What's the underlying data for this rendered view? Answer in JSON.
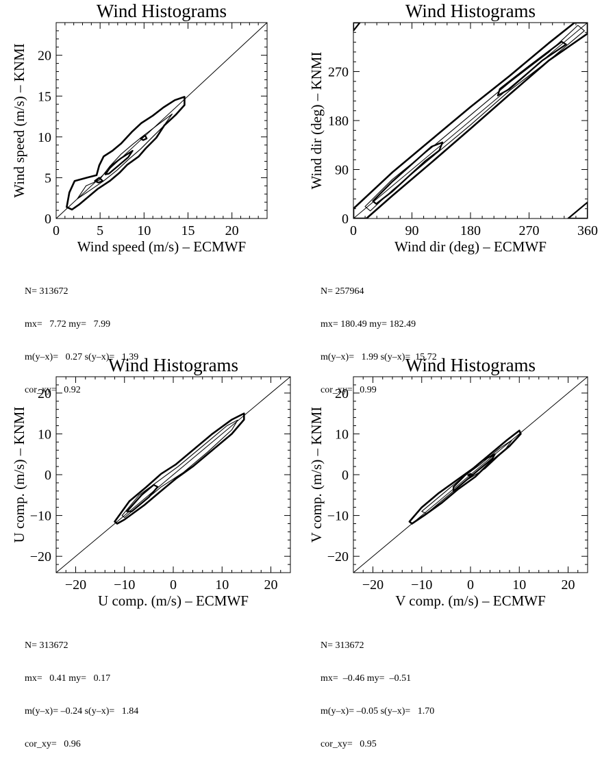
{
  "chart_data": [
    {
      "type": "heatmap",
      "subtype": "contour",
      "title": "Wind Histograms",
      "xlabel": "Wind speed (m/s)  – ECMWF",
      "ylabel": "Wind speed (m/s)  – KNMI",
      "xlim": [
        0,
        24
      ],
      "ylim": [
        0,
        24
      ],
      "xticks": [
        0,
        5,
        10,
        15,
        20
      ],
      "yticks": [
        0,
        5,
        10,
        15,
        20
      ],
      "xticklabels": [
        "0",
        "5",
        "10",
        "15",
        "20"
      ],
      "yticklabels": [
        "0",
        "5",
        "10",
        "15",
        "20"
      ],
      "diagonal": true,
      "contours": [
        {
          "level": "outer",
          "points": [
            [
              1.2,
              1.4
            ],
            [
              1.5,
              3.2
            ],
            [
              2.1,
              4.6
            ],
            [
              3.5,
              5.0
            ],
            [
              4.6,
              5.3
            ],
            [
              4.9,
              6.5
            ],
            [
              5.4,
              7.6
            ],
            [
              6.4,
              8.3
            ],
            [
              7.4,
              9.2
            ],
            [
              8.6,
              10.6
            ],
            [
              9.7,
              11.7
            ],
            [
              11.0,
              12.6
            ],
            [
              12.2,
              13.6
            ],
            [
              13.5,
              14.5
            ],
            [
              14.6,
              14.9
            ],
            [
              14.6,
              13.9
            ],
            [
              13.6,
              12.7
            ],
            [
              12.3,
              11.4
            ],
            [
              11.4,
              9.9
            ],
            [
              10.2,
              8.6
            ],
            [
              9.4,
              7.6
            ],
            [
              8.1,
              6.6
            ],
            [
              7.2,
              5.6
            ],
            [
              6.1,
              4.6
            ],
            [
              4.7,
              3.6
            ],
            [
              3.6,
              2.6
            ],
            [
              2.6,
              1.7
            ],
            [
              1.8,
              1.1
            ]
          ]
        },
        {
          "level": "mid",
          "points": [
            [
              2.4,
              2.4
            ],
            [
              3.4,
              4.0
            ],
            [
              4.9,
              4.7
            ],
            [
              6.1,
              6.4
            ],
            [
              7.4,
              7.9
            ],
            [
              8.6,
              9.0
            ],
            [
              10.0,
              10.2
            ],
            [
              11.7,
              11.6
            ],
            [
              13.2,
              12.8
            ],
            [
              12.2,
              11.3
            ],
            [
              10.8,
              9.8
            ],
            [
              9.6,
              8.5
            ],
            [
              8.2,
              7.2
            ],
            [
              6.9,
              5.9
            ],
            [
              5.4,
              4.6
            ],
            [
              3.9,
              3.5
            ]
          ]
        },
        {
          "level": "core",
          "points": [
            [
              5.6,
              5.4
            ],
            [
              6.3,
              6.5
            ],
            [
              7.4,
              7.4
            ],
            [
              8.7,
              8.3
            ],
            [
              8.2,
              7.5
            ],
            [
              7.0,
              6.4
            ],
            [
              6.0,
              5.5
            ]
          ]
        },
        {
          "level": "peak",
          "points": [
            [
              4.4,
              4.6
            ],
            [
              4.9,
              5.0
            ],
            [
              5.3,
              4.6
            ],
            [
              4.8,
              4.4
            ]
          ]
        },
        {
          "level": "peak",
          "points": [
            [
              9.6,
              9.8
            ],
            [
              10.1,
              10.2
            ],
            [
              10.3,
              9.8
            ],
            [
              9.9,
              9.6
            ]
          ]
        }
      ],
      "stats": [
        "N= 313672",
        "mx=   7.72 my=   7.99",
        "m(y–x)=   0.27 s(y–x)=   1.39",
        "cor_xy=   0.92"
      ]
    },
    {
      "type": "heatmap",
      "subtype": "contour",
      "title": "Wind Histograms",
      "xlabel": "Wind dir (deg)  – ECMWF",
      "ylabel": "Wind dir (deg)  – KNMI",
      "xlim": [
        0,
        360
      ],
      "ylim": [
        0,
        360
      ],
      "xticks": [
        0,
        90,
        180,
        270,
        360
      ],
      "yticks": [
        0,
        90,
        180,
        270
      ],
      "xticklabels": [
        "0",
        "90",
        "180",
        "270",
        "360"
      ],
      "yticklabels": [
        "0",
        "90",
        "180",
        "270"
      ],
      "diagonal": true,
      "contours": [
        {
          "level": "outer",
          "points": [
            [
              0,
              18
            ],
            [
              60,
              85
            ],
            [
              120,
              145
            ],
            [
              180,
              205
            ],
            [
              240,
              262
            ],
            [
              300,
              322
            ],
            [
              340,
              360
            ],
            [
              360,
              360
            ],
            [
              360,
              340
            ],
            [
              300,
              290
            ],
            [
              240,
              228
            ],
            [
              180,
              165
            ],
            [
              120,
              103
            ],
            [
              60,
              42
            ],
            [
              20,
              0
            ],
            [
              0,
              0
            ]
          ]
        },
        {
          "level": "mid",
          "points": [
            [
              18,
              22
            ],
            [
              60,
              72
            ],
            [
              120,
              130
            ],
            [
              180,
              190
            ],
            [
              240,
              250
            ],
            [
              300,
              305
            ],
            [
              345,
              355
            ],
            [
              355,
              345
            ],
            [
              300,
              290
            ],
            [
              240,
              235
            ],
            [
              180,
              172
            ],
            [
              120,
              112
            ],
            [
              60,
              52
            ],
            [
              26,
              14
            ]
          ]
        },
        {
          "level": "core",
          "points": [
            [
              30,
              32
            ],
            [
              60,
              68
            ],
            [
              120,
              132
            ],
            [
              137,
              140
            ],
            [
              132,
              125
            ],
            [
              110,
              105
            ],
            [
              60,
              50
            ],
            [
              35,
              27
            ]
          ]
        },
        {
          "level": "core",
          "points": [
            [
              225,
              238
            ],
            [
              270,
              280
            ],
            [
              320,
              325
            ],
            [
              327,
              320
            ],
            [
              290,
              290
            ],
            [
              240,
              238
            ],
            [
              222,
              226
            ]
          ]
        },
        {
          "level": "corner",
          "points": [
            [
              330,
              0
            ],
            [
              360,
              30
            ],
            [
              360,
              0
            ]
          ]
        },
        {
          "level": "corner",
          "points": [
            [
              0,
              345
            ],
            [
              10,
              360
            ],
            [
              0,
              360
            ]
          ]
        }
      ],
      "stats": [
        "N= 257964",
        "mx= 180.49 my= 182.49",
        "m(y–x)=   1.99 s(y–x)=  15.72",
        "cor_xy=   0.99"
      ]
    },
    {
      "type": "heatmap",
      "subtype": "contour",
      "title": "Wind Histograms",
      "xlabel": "U comp. (m/s)  – ECMWF",
      "ylabel": "U comp. (m/s)  – KNMI",
      "xlim": [
        -24,
        24
      ],
      "ylim": [
        -24,
        24
      ],
      "xticks": [
        -20,
        -10,
        0,
        10,
        20
      ],
      "yticks": [
        -20,
        -10,
        0,
        10,
        20
      ],
      "xticklabels": [
        "−20",
        "−10",
        "0",
        "10",
        "20"
      ],
      "yticklabels": [
        "−20",
        "−10",
        "0",
        "10",
        "20"
      ],
      "diagonal": true,
      "contours": [
        {
          "level": "outer",
          "points": [
            [
              -12.0,
              -11.5
            ],
            [
              -9.0,
              -6.5
            ],
            [
              -5.5,
              -3.0
            ],
            [
              -2.5,
              0.2
            ],
            [
              0.5,
              2.5
            ],
            [
              4.0,
              6.0
            ],
            [
              8.0,
              10.0
            ],
            [
              12.0,
              13.5
            ],
            [
              14.5,
              15.0
            ],
            [
              14.5,
              13.5
            ],
            [
              12.0,
              10.0
            ],
            [
              8.0,
              6.0
            ],
            [
              4.0,
              2.0
            ],
            [
              0.5,
              -1.0
            ],
            [
              -2.5,
              -4.0
            ],
            [
              -6.0,
              -7.5
            ],
            [
              -10.0,
              -11.0
            ],
            [
              -11.5,
              -12.0
            ]
          ]
        },
        {
          "level": "mid",
          "points": [
            [
              -10.5,
              -10.0
            ],
            [
              -7.0,
              -5.0
            ],
            [
              -3.0,
              -1.5
            ],
            [
              1.0,
              2.0
            ],
            [
              6.0,
              7.0
            ],
            [
              11.0,
              12.0
            ],
            [
              13.2,
              13.4
            ],
            [
              12.0,
              11.0
            ],
            [
              7.0,
              5.5
            ],
            [
              2.0,
              0.5
            ],
            [
              -2.5,
              -3.0
            ],
            [
              -7.0,
              -7.5
            ],
            [
              -10.0,
              -10.5
            ]
          ]
        },
        {
          "level": "core",
          "points": [
            [
              -9.5,
              -9.0
            ],
            [
              -6.5,
              -5.0
            ],
            [
              -4.0,
              -2.5
            ],
            [
              -3.2,
              -3.0
            ],
            [
              -5.0,
              -5.5
            ],
            [
              -8.5,
              -9.0
            ]
          ]
        }
      ],
      "stats": [
        "N= 313672",
        "mx=   0.41 my=   0.17",
        "m(y–x)= –0.24 s(y–x)=   1.84",
        "cor_xy=   0.96"
      ]
    },
    {
      "type": "heatmap",
      "subtype": "contour",
      "title": "Wind Histograms",
      "xlabel": "V comp. (m/s)  – ECMWF",
      "ylabel": "V comp. (m/s)  – KNMI",
      "xlim": [
        -24,
        24
      ],
      "ylim": [
        -24,
        24
      ],
      "xticks": [
        -20,
        -10,
        0,
        10,
        20
      ],
      "yticks": [
        -20,
        -10,
        0,
        10,
        20
      ],
      "xticklabels": [
        "−20",
        "−10",
        "0",
        "10",
        "20"
      ],
      "yticklabels": [
        "−20",
        "−10",
        "0",
        "10",
        "20"
      ],
      "diagonal": true,
      "contours": [
        {
          "level": "outer",
          "points": [
            [
              -12.5,
              -11.5
            ],
            [
              -10.0,
              -8.0
            ],
            [
              -6.5,
              -4.5
            ],
            [
              -3.0,
              -1.5
            ],
            [
              0.5,
              1.5
            ],
            [
              4.0,
              5.0
            ],
            [
              7.5,
              8.5
            ],
            [
              10.0,
              10.8
            ],
            [
              10.3,
              10.0
            ],
            [
              8.0,
              7.0
            ],
            [
              4.0,
              3.0
            ],
            [
              1.0,
              -0.5
            ],
            [
              -2.5,
              -3.5
            ],
            [
              -6.0,
              -7.0
            ],
            [
              -9.5,
              -10.0
            ],
            [
              -12.0,
              -12.0
            ]
          ]
        },
        {
          "level": "mid",
          "points": [
            [
              -10.0,
              -9.0
            ],
            [
              -6.0,
              -5.0
            ],
            [
              -2.0,
              -1.0
            ],
            [
              2.0,
              2.5
            ],
            [
              6.0,
              6.5
            ],
            [
              8.5,
              8.5
            ],
            [
              7.0,
              6.0
            ],
            [
              3.0,
              1.5
            ],
            [
              -1.0,
              -1.5
            ],
            [
              -5.0,
              -5.5
            ],
            [
              -9.0,
              -9.5
            ]
          ]
        },
        {
          "level": "core",
          "points": [
            [
              -3.5,
              -3.0
            ],
            [
              -1.0,
              0.0
            ],
            [
              2.5,
              3.5
            ],
            [
              5.0,
              5.0
            ],
            [
              4.5,
              4.0
            ],
            [
              1.5,
              1.0
            ],
            [
              -1.5,
              -2.0
            ],
            [
              -3.5,
              -4.0
            ]
          ]
        },
        {
          "level": "peak",
          "points": [
            [
              -0.5,
              -0.1
            ],
            [
              0.0,
              0.2
            ],
            [
              0.4,
              -0.1
            ],
            [
              0.0,
              -0.4
            ]
          ]
        }
      ],
      "stats": [
        "N= 313672",
        "mx=  –0.46 my=  –0.51",
        "m(y–x)= –0.05 s(y–x)=   1.70",
        "cor_xy=   0.95"
      ]
    }
  ]
}
